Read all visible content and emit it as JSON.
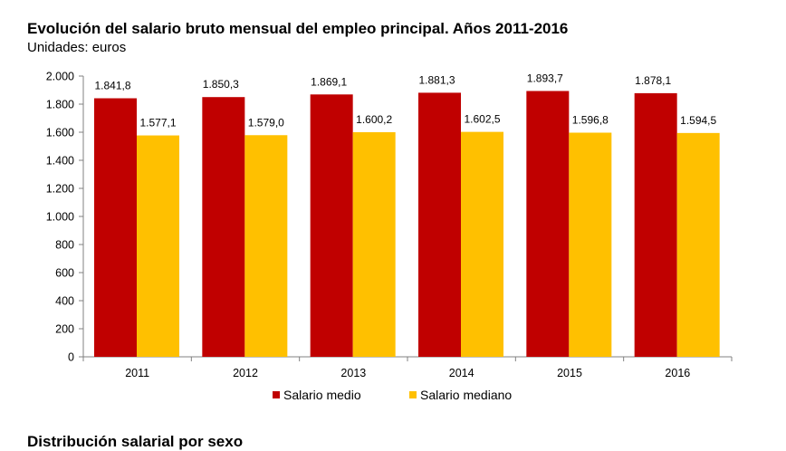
{
  "chart_data": {
    "type": "bar",
    "title": "Evolución del salario bruto mensual del empleo principal. Años 2011-2016",
    "subtitle": "Unidades: euros",
    "categories": [
      "2011",
      "2012",
      "2013",
      "2014",
      "2015",
      "2016"
    ],
    "series": [
      {
        "name": "Salario medio",
        "color": "#c00000",
        "values": [
          1841.8,
          1850.3,
          1869.1,
          1881.3,
          1893.7,
          1878.1
        ],
        "labels": [
          "1.841,8",
          "1.850,3",
          "1.869,1",
          "1.881,3",
          "1.893,7",
          "1.878,1"
        ]
      },
      {
        "name": "Salario mediano",
        "color": "#ffc000",
        "values": [
          1577.1,
          1579.0,
          1600.2,
          1602.5,
          1596.8,
          1594.5
        ],
        "labels": [
          "1.577,1",
          "1.579,0",
          "1.600,2",
          "1.602,5",
          "1.596,8",
          "1.594,5"
        ]
      }
    ],
    "ylim": [
      0,
      2000
    ],
    "yticks": [
      0,
      200,
      400,
      600,
      800,
      1000,
      1200,
      1400,
      1600,
      1800,
      2000
    ],
    "ytick_labels": [
      "0",
      "200",
      "400",
      "600",
      "800",
      "1.000",
      "1.200",
      "1.400",
      "1.600",
      "1.800",
      "2.000"
    ],
    "xlabel": "",
    "ylabel": "",
    "grid": false,
    "legend_position": "bottom"
  },
  "next_section": {
    "title": "Distribución salarial por sexo"
  }
}
